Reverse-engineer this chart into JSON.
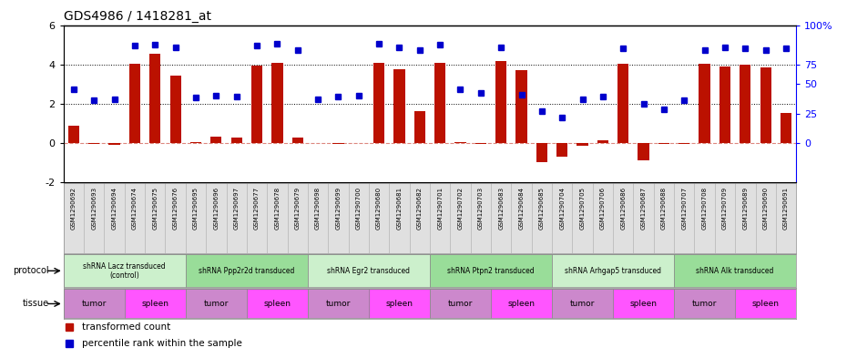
{
  "title": "GDS4986 / 1418281_at",
  "samples": [
    "GSM1290692",
    "GSM1290693",
    "GSM1290694",
    "GSM1290674",
    "GSM1290675",
    "GSM1290676",
    "GSM1290695",
    "GSM1290696",
    "GSM1290697",
    "GSM1290677",
    "GSM1290678",
    "GSM1290679",
    "GSM1290698",
    "GSM1290699",
    "GSM1290700",
    "GSM1290680",
    "GSM1290681",
    "GSM1290682",
    "GSM1290701",
    "GSM1290702",
    "GSM1290703",
    "GSM1290683",
    "GSM1290684",
    "GSM1290685",
    "GSM1290704",
    "GSM1290705",
    "GSM1290706",
    "GSM1290686",
    "GSM1290687",
    "GSM1290688",
    "GSM1290707",
    "GSM1290708",
    "GSM1290709",
    "GSM1290689",
    "GSM1290690",
    "GSM1290691"
  ],
  "bar_values": [
    0.9,
    -0.05,
    -0.1,
    4.05,
    4.55,
    3.45,
    0.05,
    0.35,
    0.3,
    3.95,
    4.1,
    0.3,
    0.0,
    -0.05,
    0.0,
    4.1,
    3.75,
    1.65,
    4.1,
    0.05,
    -0.05,
    4.15,
    3.7,
    -0.95,
    -0.7,
    -0.15,
    0.15,
    4.05,
    -0.85,
    -0.05,
    -0.05,
    4.05,
    3.9,
    4.0,
    3.85,
    1.55
  ],
  "dot_values": [
    2.75,
    2.2,
    2.25,
    4.95,
    5.0,
    4.85,
    2.3,
    2.4,
    2.35,
    4.95,
    5.05,
    4.75,
    2.25,
    2.35,
    2.4,
    5.05,
    4.85,
    4.75,
    5.0,
    2.75,
    2.55,
    4.85,
    2.45,
    1.65,
    1.3,
    2.25,
    2.35,
    4.8,
    2.0,
    1.7,
    2.2,
    4.75,
    4.85,
    4.8,
    4.75,
    4.8
  ],
  "protocols": [
    {
      "label": "shRNA Lacz transduced\n(control)",
      "start": 0,
      "end": 6,
      "color": "#ccf0cc"
    },
    {
      "label": "shRNA Ppp2r2d transduced",
      "start": 6,
      "end": 12,
      "color": "#99dd99"
    },
    {
      "label": "shRNA Egr2 transduced",
      "start": 12,
      "end": 18,
      "color": "#ccf0cc"
    },
    {
      "label": "shRNA Ptpn2 transduced",
      "start": 18,
      "end": 24,
      "color": "#99dd99"
    },
    {
      "label": "shRNA Arhgap5 transduced",
      "start": 24,
      "end": 30,
      "color": "#ccf0cc"
    },
    {
      "label": "shRNA Alk transduced",
      "start": 30,
      "end": 36,
      "color": "#99dd99"
    }
  ],
  "tissues": [
    {
      "label": "tumor",
      "start": 0,
      "end": 3,
      "color": "#cc88cc"
    },
    {
      "label": "spleen",
      "start": 3,
      "end": 6,
      "color": "#ff55ff"
    },
    {
      "label": "tumor",
      "start": 6,
      "end": 9,
      "color": "#cc88cc"
    },
    {
      "label": "spleen",
      "start": 9,
      "end": 12,
      "color": "#ff55ff"
    },
    {
      "label": "tumor",
      "start": 12,
      "end": 15,
      "color": "#cc88cc"
    },
    {
      "label": "spleen",
      "start": 15,
      "end": 18,
      "color": "#ff55ff"
    },
    {
      "label": "tumor",
      "start": 18,
      "end": 21,
      "color": "#cc88cc"
    },
    {
      "label": "spleen",
      "start": 21,
      "end": 24,
      "color": "#ff55ff"
    },
    {
      "label": "tumor",
      "start": 24,
      "end": 27,
      "color": "#cc88cc"
    },
    {
      "label": "spleen",
      "start": 27,
      "end": 30,
      "color": "#ff55ff"
    },
    {
      "label": "tumor",
      "start": 30,
      "end": 33,
      "color": "#cc88cc"
    },
    {
      "label": "spleen",
      "start": 33,
      "end": 36,
      "color": "#ff55ff"
    }
  ],
  "ylim": [
    -2.0,
    6.0
  ],
  "yticks_left": [
    -2,
    0,
    2,
    4,
    6
  ],
  "right_ticks_pct": [
    "0",
    "25",
    "50",
    "75",
    "100%"
  ],
  "right_ticks_y": [
    0.0,
    1.5,
    3.0,
    4.0,
    6.0
  ],
  "bar_color": "#bb1100",
  "dot_color": "#0000cc",
  "dotted_lines": [
    2.0,
    4.0
  ],
  "legend_bar_label": "transformed count",
  "legend_dot_label": "percentile rank within the sample"
}
